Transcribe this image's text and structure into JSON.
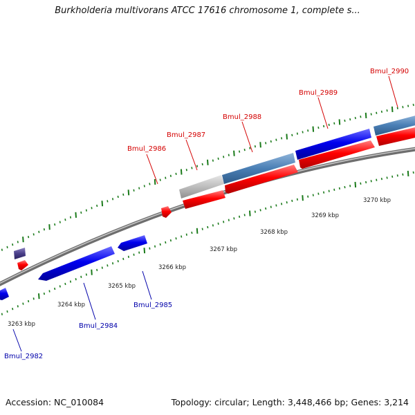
{
  "title": "Burkholderia multivorans ATCC 17616 chromosome 1, complete s...",
  "footer": {
    "accession": "Accession: NC_010084",
    "summary": "Topology: circular; Length: 3,448,466 bp; Genes: 3,214"
  },
  "scale_ticks": [
    {
      "label": "3263 kbp"
    },
    {
      "label": "3264 kbp"
    },
    {
      "label": "3265 kbp"
    },
    {
      "label": "3266 kbp"
    },
    {
      "label": "3267 kbp"
    },
    {
      "label": "3268 kbp"
    },
    {
      "label": "3269 kbp"
    },
    {
      "label": "3270 kbp"
    }
  ],
  "gene_labels_top": [
    "Bmul_2986",
    "Bmul_2987",
    "Bmul_2988",
    "Bmul_2989",
    "Bmul_2990"
  ],
  "gene_labels_bottom": [
    "Bmul_2982",
    "Bmul_2984",
    "Bmul_2985"
  ],
  "colors": {
    "forward_gene": "#ff0000",
    "reverse_gene": "#0000ee",
    "steelblue_feature": "#4a7fb5",
    "gray_feature": "#bdbdbd",
    "purple_feature": "#4a3f8a",
    "tick": "#1a7a1a",
    "top_label": "#d40000",
    "bottom_label": "#0000aa"
  }
}
